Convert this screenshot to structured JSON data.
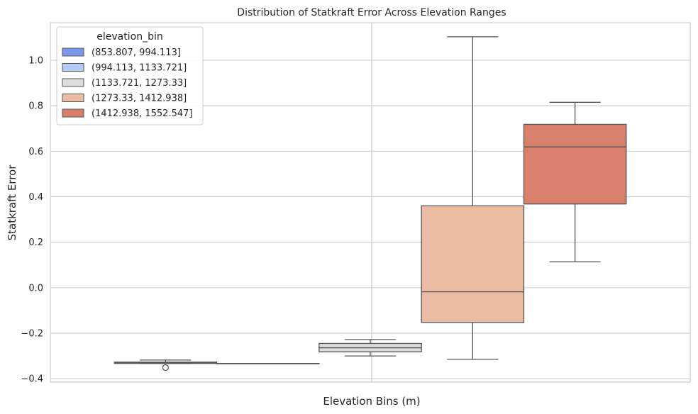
{
  "chart_data": {
    "type": "box",
    "title": "Distribution of Statkraft Error Across Elevation Ranges",
    "xlabel": "Elevation Bins (m)",
    "ylabel": "Statkraft Error",
    "ylim": [
      -0.415,
      1.165
    ],
    "yticks": [
      -0.4,
      -0.2,
      0.0,
      0.2,
      0.4,
      0.6,
      0.8,
      1.0
    ],
    "ytick_labels": [
      "−0.4",
      "−0.2",
      "0.0",
      "0.2",
      "0.4",
      "0.6",
      "0.8",
      "1.0"
    ],
    "grid": true,
    "legend": {
      "title": "elevation_bin",
      "placement": "top-left"
    },
    "series": [
      {
        "name": "(853.807, 994.113]",
        "color": "#7b96ea",
        "q1": -0.333,
        "median": -0.33,
        "q3": -0.327,
        "whisker_low": -0.333,
        "whisker_high": -0.318,
        "outliers": [
          -0.351
        ]
      },
      {
        "name": "(994.113, 1133.721]",
        "color": "#b4cbf5",
        "q1": -0.333,
        "median": -0.333,
        "q3": -0.333,
        "whisker_low": -0.333,
        "whisker_high": -0.333,
        "outliers": []
      },
      {
        "name": "(1133.721, 1273.33]",
        "color": "#dcdcdc",
        "q1": -0.282,
        "median": -0.264,
        "q3": -0.245,
        "whisker_low": -0.3,
        "whisker_high": -0.228,
        "outliers": []
      },
      {
        "name": "(1273.33, 1412.938]",
        "color": "#ecbba4",
        "q1": -0.153,
        "median": -0.018,
        "q3": 0.36,
        "whisker_low": -0.315,
        "whisker_high": 1.103,
        "outliers": []
      },
      {
        "name": "(1412.938, 1552.547]",
        "color": "#d8806c",
        "q1": 0.368,
        "median": 0.619,
        "q3": 0.718,
        "whisker_low": 0.114,
        "whisker_high": 0.815,
        "outliers": []
      }
    ]
  }
}
